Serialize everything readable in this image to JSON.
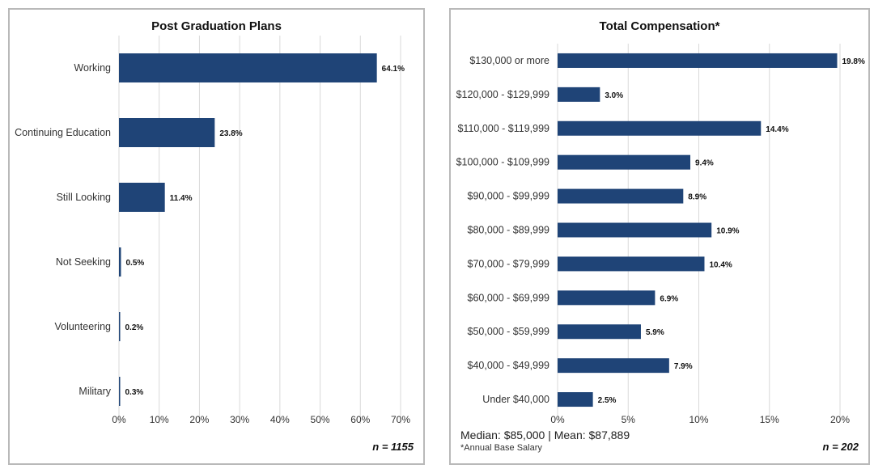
{
  "charts": [
    {
      "title": "Post Graduation Plans",
      "n_label": "n = 1155",
      "chart_data": {
        "type": "bar",
        "orientation": "horizontal",
        "title": "Post Graduation Plans",
        "categories": [
          "Working",
          "Continuing Education",
          "Still Looking",
          "Not Seeking",
          "Volunteering",
          "Military"
        ],
        "values": [
          64.1,
          23.8,
          11.4,
          0.5,
          0.2,
          0.3
        ],
        "data_labels": [
          "64.1%",
          "23.8%",
          "11.4%",
          "0.5%",
          "0.2%",
          "0.3%"
        ],
        "xlim": [
          0,
          70
        ],
        "xticks": [
          0,
          10,
          20,
          30,
          40,
          50,
          60,
          70
        ],
        "xtick_labels": [
          "0%",
          "10%",
          "20%",
          "30%",
          "40%",
          "50%",
          "60%",
          "70%"
        ],
        "grid": true,
        "bar_color": "#1f4477"
      }
    },
    {
      "title": "Total Compensation*",
      "n_label": "n = 202",
      "stats_text": "Median: $85,000 | Mean: $87,889",
      "footnote": "*Annual Base Salary",
      "chart_data": {
        "type": "bar",
        "orientation": "horizontal",
        "title": "Total Compensation*",
        "categories": [
          "$130,000 or more",
          "$120,000 - $129,999",
          "$110,000 - $119,999",
          "$100,000 - $109,999",
          "$90,000 - $99,999",
          "$80,000 - $89,999",
          "$70,000 - $79,999",
          "$60,000 - $69,999",
          "$50,000 - $59,999",
          "$40,000 - $49,999",
          "Under $40,000"
        ],
        "values": [
          19.8,
          3.0,
          14.4,
          9.4,
          8.9,
          10.9,
          10.4,
          6.9,
          5.9,
          7.9,
          2.5
        ],
        "data_labels": [
          "19.8%",
          "3.0%",
          "14.4%",
          "9.4%",
          "8.9%",
          "10.9%",
          "10.4%",
          "6.9%",
          "5.9%",
          "7.9%",
          "2.5%"
        ],
        "xlim": [
          0,
          20
        ],
        "xticks": [
          0,
          5,
          10,
          15,
          20
        ],
        "xtick_labels": [
          "0%",
          "5%",
          "10%",
          "15%",
          "20%"
        ],
        "grid": true,
        "bar_color": "#1f4477"
      }
    }
  ]
}
